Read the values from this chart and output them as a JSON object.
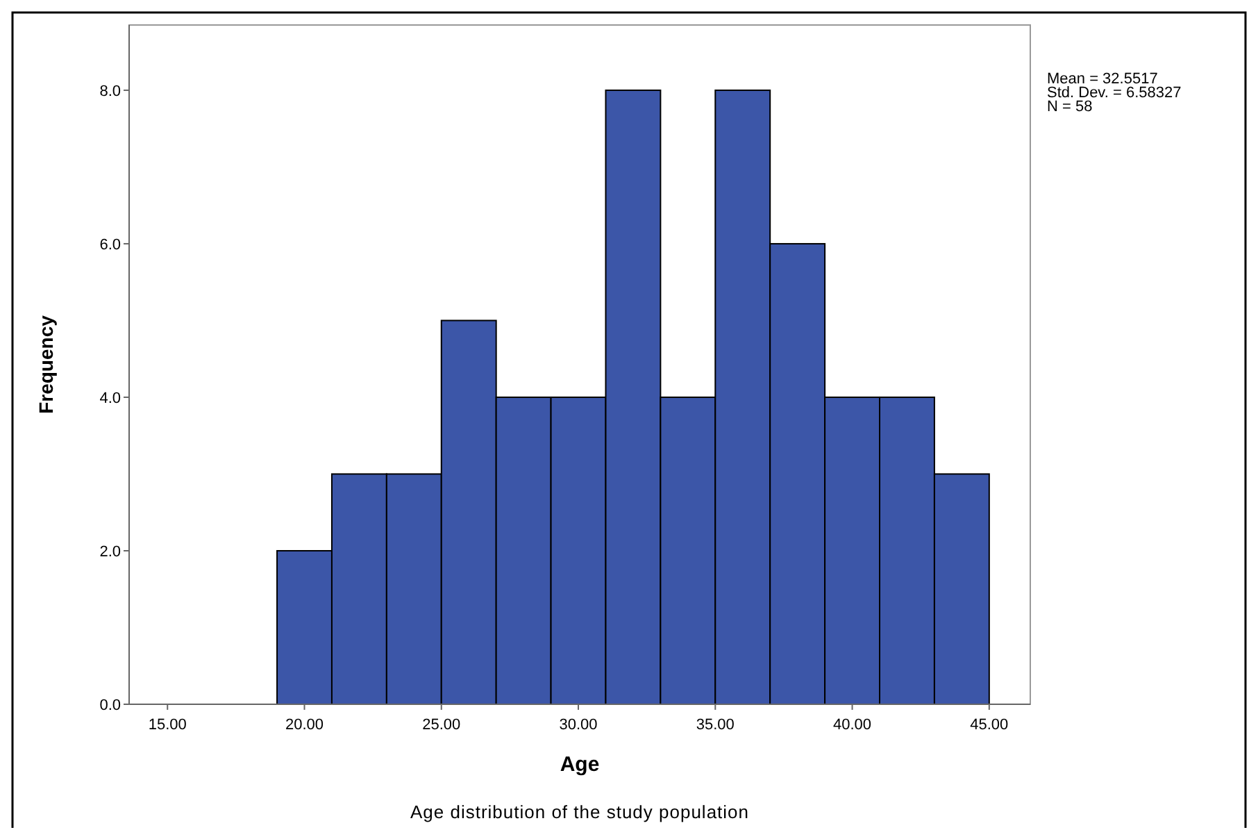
{
  "chart_data": {
    "type": "histogram",
    "xlabel": "Age",
    "ylabel": "Frequency",
    "color": "#3c56a8",
    "bins": [
      19,
      21,
      23,
      25,
      27,
      29,
      31,
      33,
      35,
      37,
      39,
      41,
      43,
      45
    ],
    "values": [
      2,
      3,
      3,
      5,
      4,
      4,
      8,
      4,
      8,
      6,
      4,
      4,
      3
    ],
    "xlim": [
      13.6,
      46.5
    ],
    "ylim": [
      0,
      8.85
    ],
    "xticks": [
      {
        "value": 15,
        "label": "15.00"
      },
      {
        "value": 20,
        "label": "20.00"
      },
      {
        "value": 25,
        "label": "25.00"
      },
      {
        "value": 30,
        "label": "30.00"
      },
      {
        "value": 35,
        "label": "35.00"
      },
      {
        "value": 40,
        "label": "40.00"
      },
      {
        "value": 45,
        "label": "45.00"
      }
    ],
    "yticks": [
      {
        "value": 0,
        "label": "0.0"
      },
      {
        "value": 2,
        "label": "2.0"
      },
      {
        "value": 4,
        "label": "4.0"
      },
      {
        "value": 6,
        "label": "6.0"
      },
      {
        "value": 8,
        "label": "8.0"
      }
    ],
    "grid": false,
    "annotations": [
      "Mean = 32.5517",
      "Std. Dev. = 6.58327",
      "N = 58",
      "Age distribution of the study population"
    ]
  }
}
